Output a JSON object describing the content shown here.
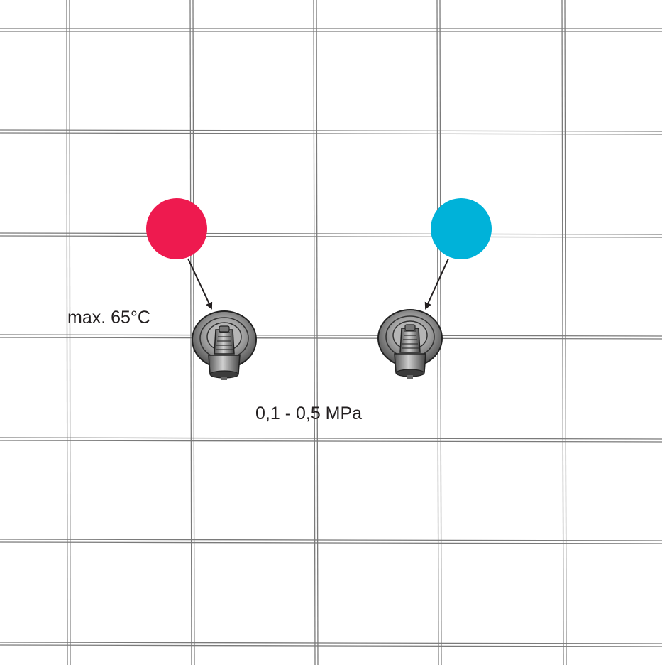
{
  "labels": {
    "temperature": "max. 65°C",
    "pressure": "0,1 - 0,5 MPa"
  },
  "markers": {
    "hot": {
      "meaning": "hot water",
      "color": "#ee1a4f"
    },
    "cold": {
      "meaning": "cold water",
      "color": "#00b2d9"
    }
  },
  "colors": {
    "grout": "#7a7a7a",
    "valve_metal": "#8c8c8c",
    "text": "#231f20"
  },
  "icons": [
    "tile-wall",
    "angle-valve-icon",
    "arrow-icon",
    "hot-water-dot",
    "cold-water-dot"
  ]
}
